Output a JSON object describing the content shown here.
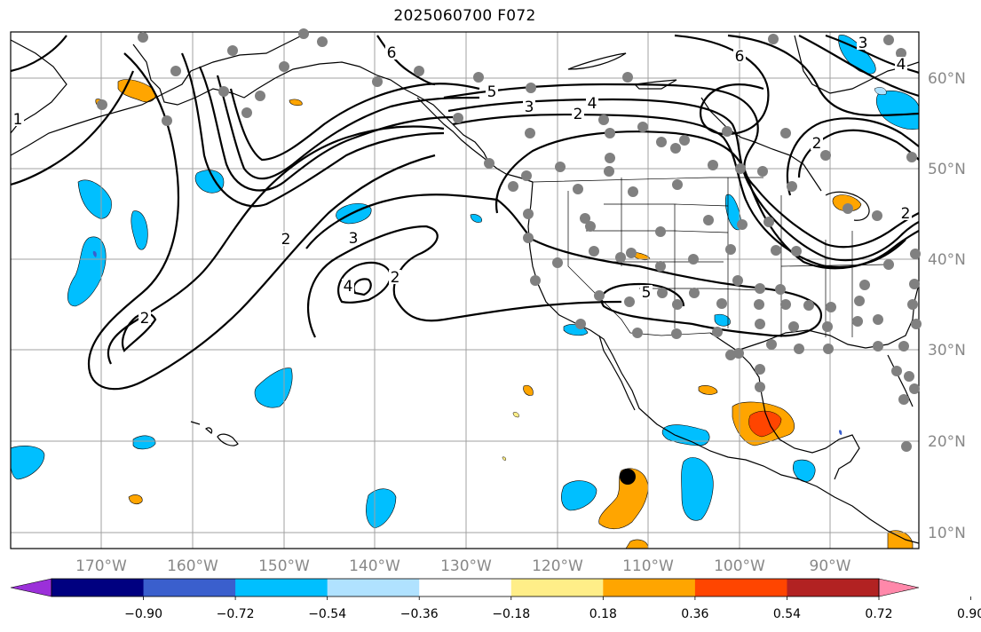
{
  "title": "2025060700 F072",
  "longitude_labels": [
    "170°W",
    "160°W",
    "150°W",
    "140°W",
    "130°W",
    "120°W",
    "110°W",
    "100°W",
    "90°W"
  ],
  "latitude_labels": [
    "10°N",
    "20°N",
    "30°N",
    "40°N",
    "50°N",
    "60°N"
  ],
  "colorbar": {
    "tick_labels": [
      "−0.90",
      "−0.72",
      "−0.54",
      "−0.36",
      "−0.18",
      "0.18",
      "0.36",
      "0.54",
      "0.72",
      "0.90"
    ],
    "colors": [
      "#9b30d9",
      "#000080",
      "#3a5fcd",
      "#00bfff",
      "#b0e2ff",
      "#ffffff",
      "#ffee88",
      "#ffa500",
      "#ff4500",
      "#b22222",
      "#ff88aa"
    ]
  },
  "contour_labels": [
    "6",
    "5",
    "4",
    "3",
    "2",
    "1",
    "2",
    "3",
    "2",
    "2",
    "4",
    "5",
    "6",
    "2",
    "3",
    "4",
    "2"
  ],
  "colors": {
    "positive_light": "#ffa500",
    "positive_strong": "#ff4500",
    "negative": "#00bfff",
    "station": "#808080"
  }
}
